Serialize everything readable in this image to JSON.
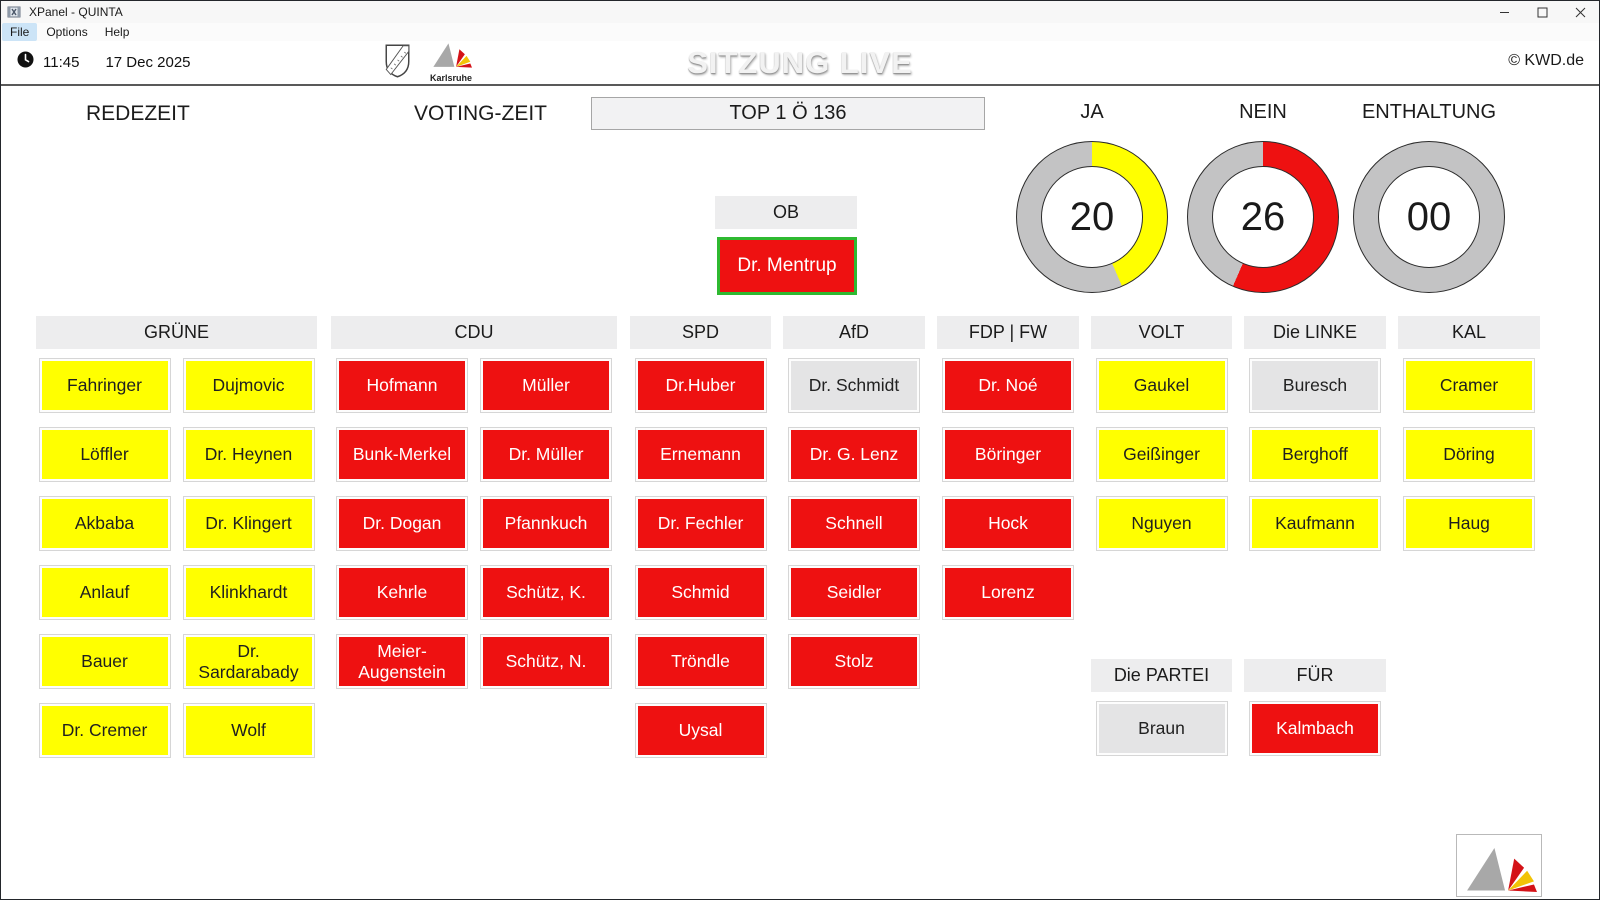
{
  "window": {
    "title": "XPanel - QUINTA",
    "menu": [
      "File",
      "Options",
      "Help"
    ],
    "controls": [
      "minimize",
      "maximize",
      "close"
    ]
  },
  "header": {
    "time": "11:45",
    "date": "17 Dec 2025",
    "title": "SITZUNG LIVE",
    "city_logo_label": "Karlsruhe",
    "copyright": "© KWD.de"
  },
  "session": {
    "redezeit_label": "REDEZEIT",
    "voting_label": "VOTING-ZEIT",
    "top_label": "TOP 1 Ö 136"
  },
  "gauges": {
    "total_votes": 46,
    "items": [
      {
        "label": "JA",
        "value": 20,
        "display": "20",
        "color": "#ffff00"
      },
      {
        "label": "NEIN",
        "value": 26,
        "display": "26",
        "color": "#ee1111"
      },
      {
        "label": "ENTHALTUNG",
        "value": 0,
        "display": "00",
        "color": "#ee1111"
      }
    ],
    "ring_color": "#c3c3c4"
  },
  "vote_colors": {
    "ja": {
      "bg": "#ffff00",
      "fg": "#1f1f1f"
    },
    "nein": {
      "bg": "#ee1111",
      "fg": "#ffffff"
    },
    "none": {
      "bg": "#e4e4e5",
      "fg": "#222222"
    }
  },
  "chairman": {
    "header": "OB",
    "name": "Dr. Mentrup",
    "vote": "nein",
    "selected": true,
    "selection_color": "#2eb931"
  },
  "parties": [
    {
      "name": "GRÜNE",
      "members": [
        {
          "name": "Fahringer",
          "vote": "ja"
        },
        {
          "name": "Dujmovic",
          "vote": "ja"
        },
        {
          "name": "Löffler",
          "vote": "ja"
        },
        {
          "name": "Dr. Heynen",
          "vote": "ja"
        },
        {
          "name": "Akbaba",
          "vote": "ja"
        },
        {
          "name": "Dr. Klingert",
          "vote": "ja"
        },
        {
          "name": "Anlauf",
          "vote": "ja"
        },
        {
          "name": "Klinkhardt",
          "vote": "ja"
        },
        {
          "name": "Bauer",
          "vote": "ja"
        },
        {
          "name": "Dr. Sardarabady",
          "vote": "ja"
        },
        {
          "name": "Dr. Cremer",
          "vote": "ja"
        },
        {
          "name": "Wolf",
          "vote": "ja"
        }
      ]
    },
    {
      "name": "CDU",
      "members": [
        {
          "name": "Hofmann",
          "vote": "nein"
        },
        {
          "name": "Müller",
          "vote": "nein"
        },
        {
          "name": "Bunk-Merkel",
          "vote": "nein"
        },
        {
          "name": "Dr. Müller",
          "vote": "nein"
        },
        {
          "name": "Dr. Dogan",
          "vote": "nein"
        },
        {
          "name": "Pfannkuch",
          "vote": "nein"
        },
        {
          "name": "Kehrle",
          "vote": "nein"
        },
        {
          "name": "Schütz, K.",
          "vote": "nein"
        },
        {
          "name": "Meier-Augenstein",
          "vote": "nein"
        },
        {
          "name": "Schütz, N.",
          "vote": "nein"
        }
      ]
    },
    {
      "name": "SPD",
      "members": [
        {
          "name": "Dr.Huber",
          "vote": "nein"
        },
        {
          "name": "Ernemann",
          "vote": "nein"
        },
        {
          "name": "Dr. Fechler",
          "vote": "nein"
        },
        {
          "name": "Schmid",
          "vote": "nein"
        },
        {
          "name": "Tröndle",
          "vote": "nein"
        },
        {
          "name": "Uysal",
          "vote": "nein"
        }
      ]
    },
    {
      "name": "AfD",
      "members": [
        {
          "name": "Dr. Schmidt",
          "vote": "none"
        },
        {
          "name": "Dr. G. Lenz",
          "vote": "nein"
        },
        {
          "name": "Schnell",
          "vote": "nein"
        },
        {
          "name": "Seidler",
          "vote": "nein"
        },
        {
          "name": "Stolz",
          "vote": "nein"
        }
      ]
    },
    {
      "name": "FDP | FW",
      "members": [
        {
          "name": "Dr. Noé",
          "vote": "nein"
        },
        {
          "name": "Böringer",
          "vote": "nein"
        },
        {
          "name": "Hock",
          "vote": "nein"
        },
        {
          "name": "Lorenz",
          "vote": "nein"
        }
      ]
    },
    {
      "name": "VOLT",
      "members": [
        {
          "name": "Gaukel",
          "vote": "ja"
        },
        {
          "name": "Geißinger",
          "vote": "ja"
        },
        {
          "name": "Nguyen",
          "vote": "ja"
        }
      ]
    },
    {
      "name": "Die LINKE",
      "members": [
        {
          "name": "Buresch",
          "vote": "none"
        },
        {
          "name": "Berghoff",
          "vote": "ja"
        },
        {
          "name": "Kaufmann",
          "vote": "ja"
        }
      ]
    },
    {
      "name": "KAL",
      "members": [
        {
          "name": "Cramer",
          "vote": "ja"
        },
        {
          "name": "Döring",
          "vote": "ja"
        },
        {
          "name": "Haug",
          "vote": "ja"
        }
      ]
    },
    {
      "name": "Die PARTEI",
      "members": [
        {
          "name": "Braun",
          "vote": "none"
        }
      ]
    },
    {
      "name": "FÜR",
      "members": [
        {
          "name": "Kalmbach",
          "vote": "nein"
        }
      ]
    }
  ]
}
